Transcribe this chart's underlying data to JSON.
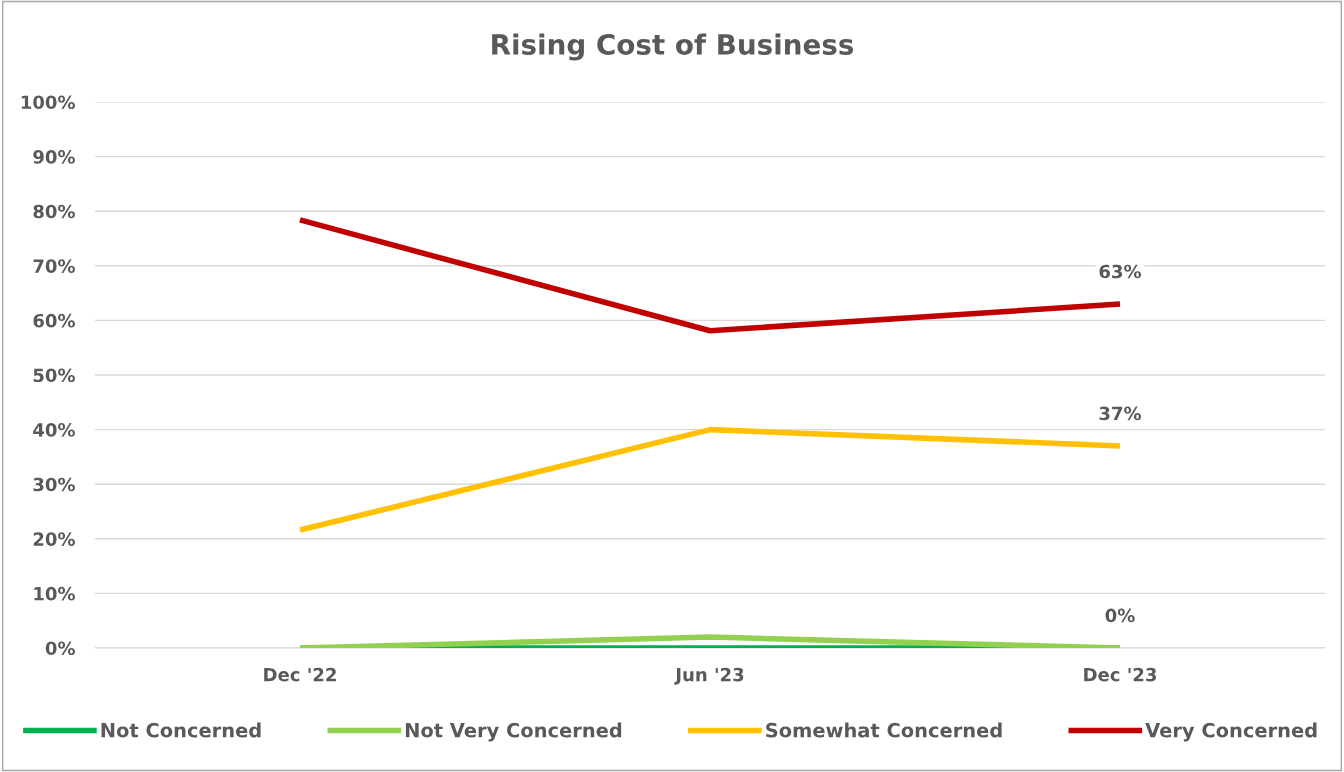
{
  "chart_data": {
    "type": "line",
    "title": "Rising Cost of Business",
    "categories": [
      "Dec '22",
      "Jun '23",
      "Dec '23"
    ],
    "series": [
      {
        "name": "Not Concerned",
        "color": "#00b050",
        "values": [
          0,
          0,
          0
        ]
      },
      {
        "name": "Not Very Concerned",
        "color": "#92d050",
        "values": [
          0,
          2,
          0
        ],
        "value_labels": [
          null,
          null,
          "0%"
        ]
      },
      {
        "name": "Somewhat Concerned",
        "color": "#ffc000",
        "values": [
          21.6,
          40,
          37
        ],
        "value_labels": [
          null,
          null,
          "37%"
        ]
      },
      {
        "name": "Very Concerned",
        "color": "#c00000",
        "values": [
          78.4,
          58.1,
          63
        ],
        "value_labels": [
          null,
          null,
          "63%"
        ]
      }
    ],
    "ylim": [
      0,
      100
    ],
    "yticks": [
      {
        "value": 0,
        "label": "0%"
      },
      {
        "value": 10,
        "label": "10%"
      },
      {
        "value": 20,
        "label": "20%"
      },
      {
        "value": 30,
        "label": "30%"
      },
      {
        "value": 40,
        "label": "40%"
      },
      {
        "value": 50,
        "label": "50%"
      },
      {
        "value": 60,
        "label": "60%"
      },
      {
        "value": 70,
        "label": "70%"
      },
      {
        "value": 80,
        "label": "80%"
      },
      {
        "value": 90,
        "label": "90%"
      },
      {
        "value": 100,
        "label": "100%"
      }
    ],
    "grid": "y",
    "legend": "bottom",
    "marker": "none",
    "line_style": "solid"
  }
}
